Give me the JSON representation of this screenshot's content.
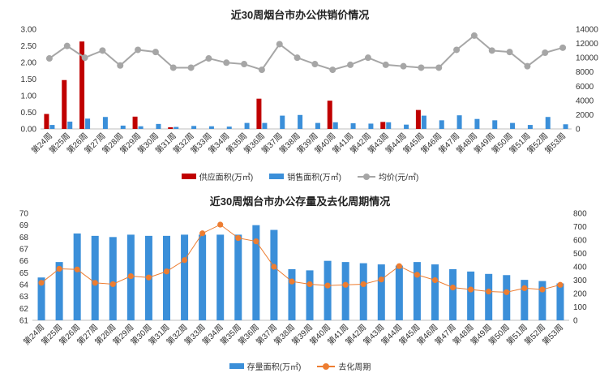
{
  "chart_data": [
    {
      "type": "bar",
      "title": "近30周烟台市办公供销价情况",
      "categories": [
        "第24周",
        "第25周",
        "第26周",
        "第27周",
        "第28周",
        "第29周",
        "第30周",
        "第31周",
        "第32周",
        "第33周",
        "第34周",
        "第35周",
        "第36周",
        "第37周",
        "第38周",
        "第39周",
        "第40周",
        "第41周",
        "第42周",
        "第43周",
        "第44周",
        "第45周",
        "第46周",
        "第47周",
        "第48周",
        "第49周",
        "第50周",
        "第51周",
        "第52周",
        "第53周"
      ],
      "series": [
        {
          "name": "供应面积(万㎡)",
          "kind": "bar",
          "axis": "left",
          "color": "#c00000",
          "values": [
            0.45,
            1.47,
            2.63,
            0,
            0,
            0.37,
            0,
            0.05,
            0,
            0,
            0,
            0,
            0.91,
            0,
            0,
            0,
            0.85,
            0,
            0,
            0.21,
            0,
            0.57,
            0,
            0,
            0,
            0,
            0,
            0,
            0,
            0
          ]
        },
        {
          "name": "销售面积(万㎡)",
          "kind": "bar",
          "axis": "left",
          "color": "#3b8fd9",
          "values": [
            0.12,
            0.22,
            0.31,
            0.36,
            0.1,
            0.08,
            0.15,
            0.06,
            0.09,
            0.08,
            0.07,
            0.18,
            0.18,
            0.4,
            0.42,
            0.18,
            0.2,
            0.17,
            0.16,
            0.2,
            0.13,
            0.4,
            0.26,
            0.41,
            0.3,
            0.26,
            0.18,
            0.12,
            0.36,
            0.14
          ]
        },
        {
          "name": "均价(元/㎡)",
          "kind": "line",
          "axis": "right",
          "color": "#a6a6a6",
          "values": [
            9900,
            11650,
            10000,
            11000,
            8900,
            11100,
            10800,
            8600,
            8600,
            9900,
            9300,
            9100,
            8300,
            11900,
            10000,
            9100,
            8300,
            9000,
            10000,
            9000,
            8800,
            8600,
            8600,
            11100,
            13100,
            11000,
            10800,
            8800,
            10700,
            11400
          ]
        }
      ],
      "yleft": {
        "min": 0,
        "max": 3.0,
        "ticks": [
          "0.00",
          "0.50",
          "1.00",
          "1.50",
          "2.00",
          "2.50",
          "3.00"
        ]
      },
      "yright": {
        "min": 0,
        "max": 14000,
        "ticks": [
          "0",
          "2000",
          "4000",
          "6000",
          "8000",
          "10000",
          "12000",
          "14000"
        ]
      }
    },
    {
      "type": "bar",
      "title": "近30周烟台市办公存量及去化周期情况",
      "categories": [
        "第24周",
        "第25周",
        "第26周",
        "第27周",
        "第28周",
        "第29周",
        "第30周",
        "第31周",
        "第32周",
        "第33周",
        "第34周",
        "第35周",
        "第36周",
        "第37周",
        "第38周",
        "第39周",
        "第40周",
        "第41周",
        "第42周",
        "第43周",
        "第44周",
        "第45周",
        "第46周",
        "第47周",
        "第48周",
        "第49周",
        "第50周",
        "第51周",
        "第52周",
        "第53周"
      ],
      "series": [
        {
          "name": "存量面积(万㎡)",
          "kind": "bar",
          "axis": "left",
          "color": "#3b8fd9",
          "values": [
            64.6,
            65.9,
            68.3,
            68.1,
            68.0,
            68.2,
            68.1,
            68.1,
            68.2,
            68.2,
            68.2,
            68.2,
            69.0,
            68.6,
            65.3,
            65.2,
            66.0,
            65.9,
            65.8,
            65.7,
            65.6,
            65.9,
            65.7,
            65.3,
            65.1,
            64.9,
            64.8,
            64.4,
            64.3,
            64.1
          ]
        },
        {
          "name": "去化周期",
          "kind": "line",
          "axis": "right",
          "color": "#ed7d31",
          "values": [
            280,
            385,
            380,
            280,
            270,
            330,
            320,
            365,
            450,
            650,
            715,
            615,
            590,
            400,
            290,
            270,
            260,
            265,
            270,
            305,
            405,
            340,
            300,
            245,
            230,
            215,
            210,
            240,
            230,
            265
          ]
        }
      ],
      "yleft": {
        "min": 61,
        "max": 70,
        "ticks": [
          "61",
          "62",
          "63",
          "64",
          "65",
          "66",
          "67",
          "68",
          "69",
          "70"
        ]
      },
      "yright": {
        "min": 0,
        "max": 800,
        "ticks": [
          "0",
          "100",
          "200",
          "300",
          "400",
          "500",
          "600",
          "700",
          "800"
        ]
      }
    }
  ]
}
